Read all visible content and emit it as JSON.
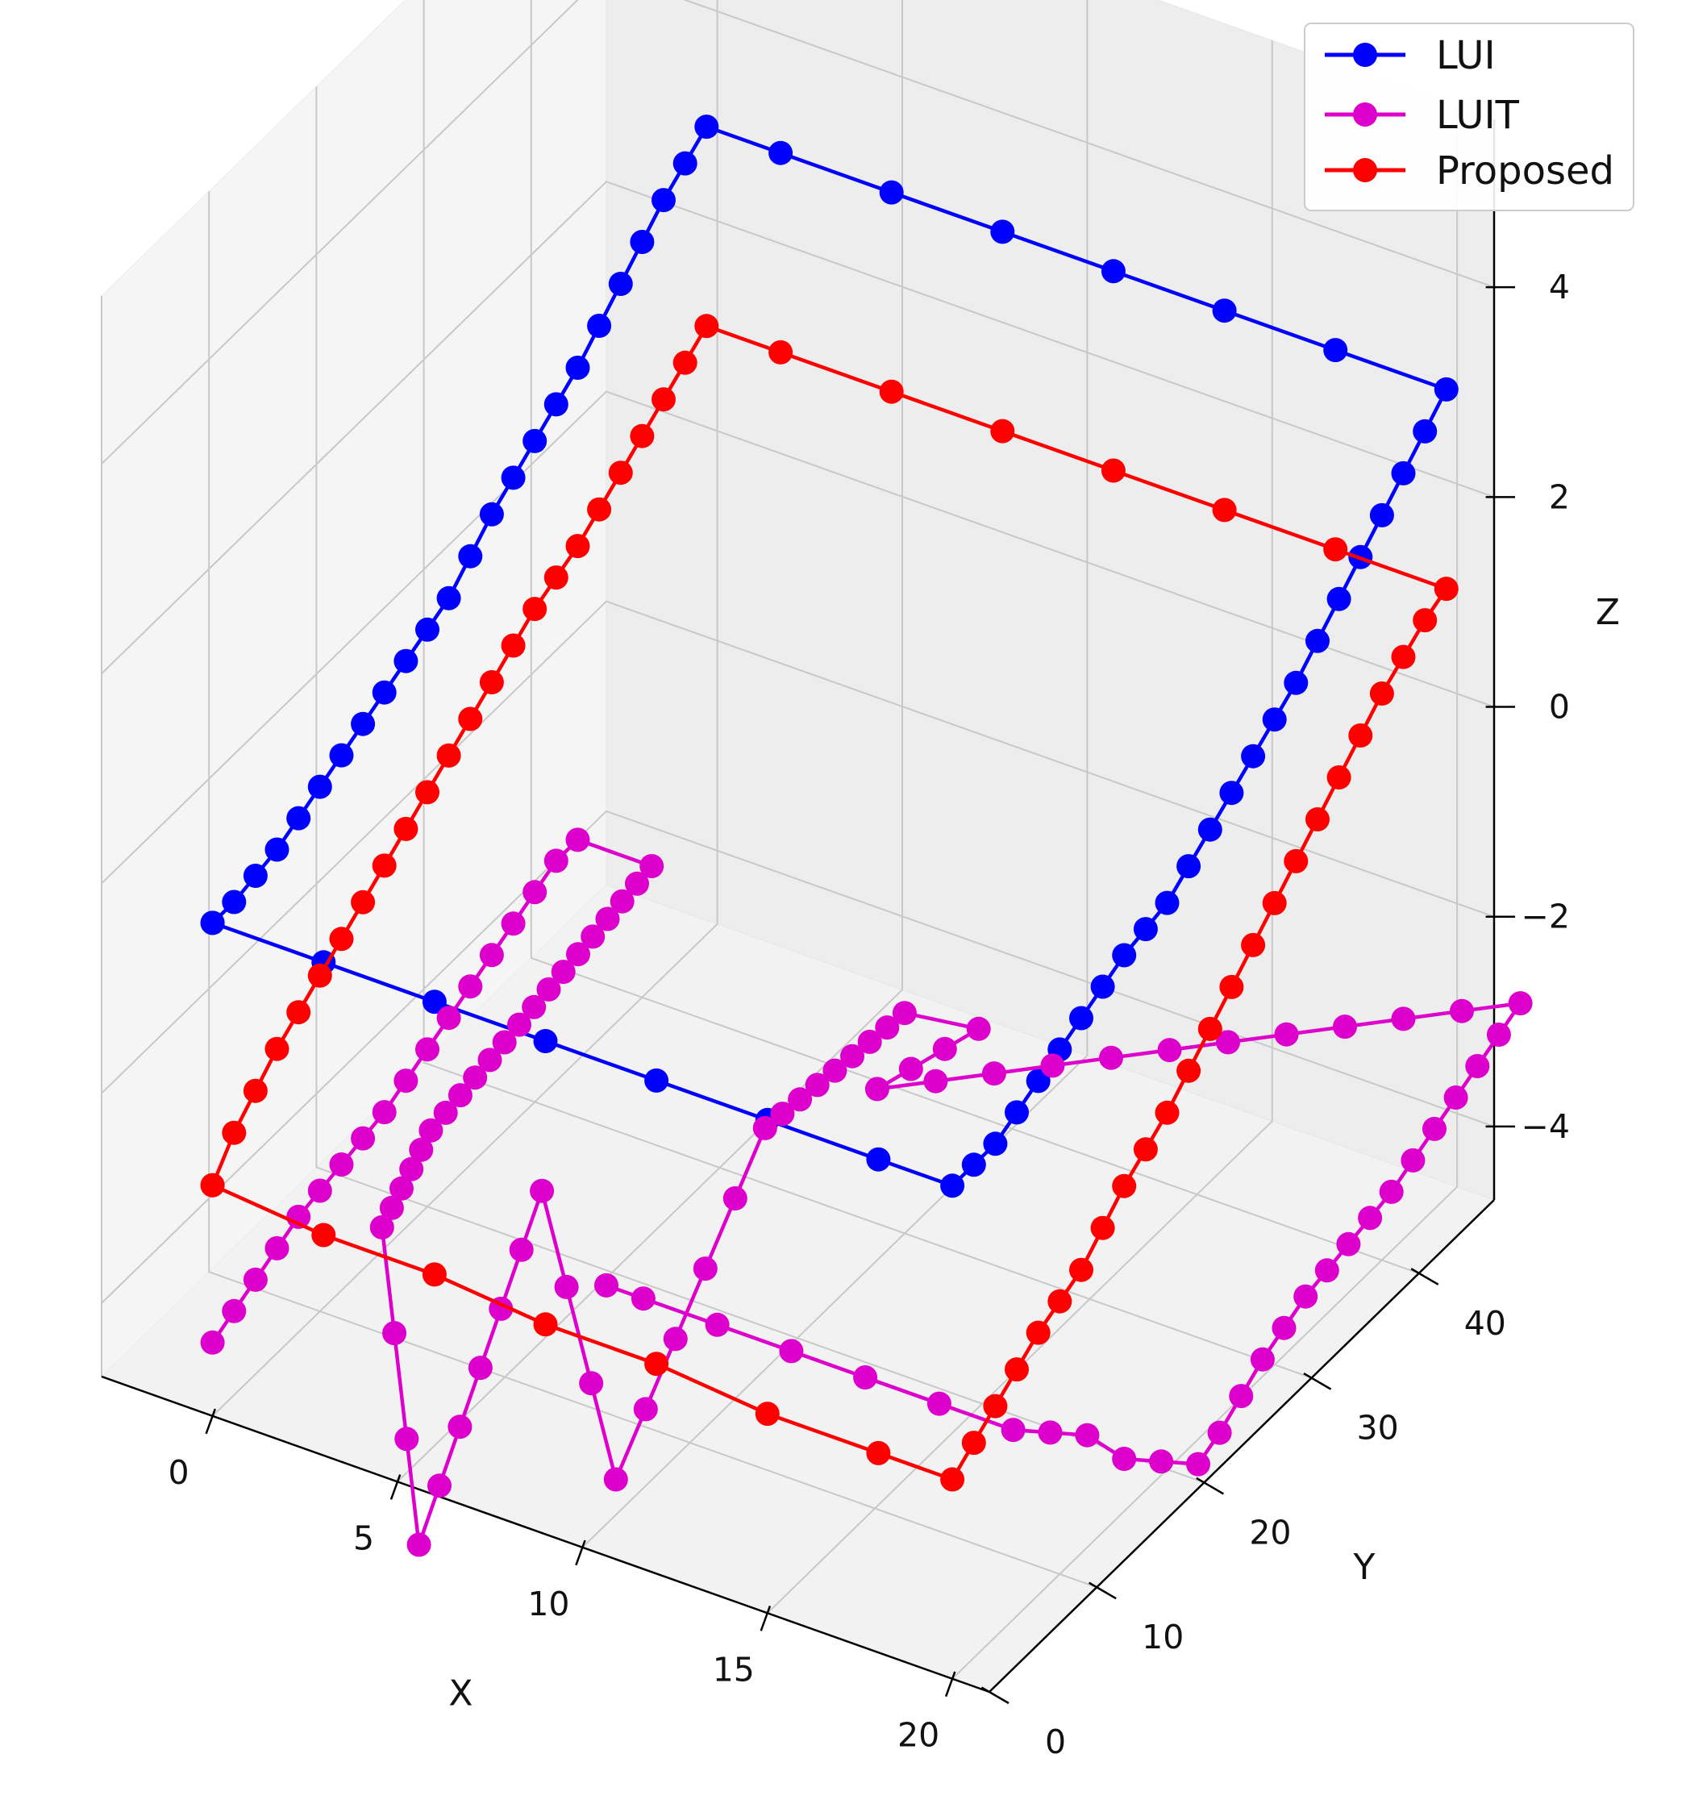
{
  "chart_data": {
    "type": "line",
    "subtype": "3d-scatter-line",
    "title": "",
    "xlabel": "X",
    "ylabel": "Y",
    "zlabel": "Z",
    "xlim": [
      -3,
      21
    ],
    "ylim": [
      0,
      47
    ],
    "zlim": [
      -4.7,
      5.6
    ],
    "x_ticks": [
      0,
      5,
      10,
      15,
      20
    ],
    "y_ticks": [
      0,
      10,
      20,
      30,
      40
    ],
    "z_ticks": [
      -4,
      -2,
      0,
      2,
      4
    ],
    "x_tick_labels": [
      "0",
      "5",
      "10",
      "15",
      "20"
    ],
    "y_tick_labels": [
      "0",
      "10",
      "20",
      "30",
      "40"
    ],
    "z_tick_labels": [
      "−4",
      "−2",
      "0",
      "2",
      "4"
    ],
    "grid": true,
    "legend_position": "top-right",
    "series": [
      {
        "name": "LUI",
        "color": "#0000ff",
        "points": [
          [
            0,
            0,
            0
          ],
          [
            3,
            0,
            0
          ],
          [
            6,
            0,
            0
          ],
          [
            9,
            0,
            0
          ],
          [
            12,
            0,
            0
          ],
          [
            15,
            0,
            0
          ],
          [
            18,
            0,
            0
          ],
          [
            20,
            0,
            0
          ],
          [
            20,
            4,
            0
          ],
          [
            20,
            8,
            0.2
          ],
          [
            20,
            12,
            0.4
          ],
          [
            20,
            16,
            0.6
          ],
          [
            20,
            20,
            0.7
          ],
          [
            20,
            24,
            1.0
          ],
          [
            20,
            28,
            1.3
          ],
          [
            20,
            32,
            1.6
          ],
          [
            20,
            36,
            2.0
          ],
          [
            20,
            40,
            2.4
          ],
          [
            20,
            44,
            2.8
          ],
          [
            20,
            46,
            3.0
          ],
          [
            17,
            46,
            3.0
          ],
          [
            14,
            46,
            3.0
          ],
          [
            11,
            46,
            3.0
          ],
          [
            8,
            46,
            3.0
          ],
          [
            5,
            46,
            3.0
          ],
          [
            2,
            46,
            3.0
          ],
          [
            0,
            46,
            3.0
          ],
          [
            0,
            42,
            2.7
          ],
          [
            0,
            38,
            2.3
          ],
          [
            0,
            34,
            1.9
          ],
          [
            0,
            30,
            1.6
          ],
          [
            0,
            26,
            1.3
          ],
          [
            0,
            22,
            0.9
          ],
          [
            0,
            18,
            0.7
          ],
          [
            0,
            14,
            0.5
          ],
          [
            0,
            10,
            0.3
          ],
          [
            0,
            6,
            0.1
          ],
          [
            0,
            2,
            0
          ],
          [
            0,
            0,
            0
          ]
        ]
      },
      {
        "name": "LUIT",
        "color": "#dd00cc",
        "points": [
          [
            0,
            0,
            -4.0
          ],
          [
            0,
            4,
            -3.8
          ],
          [
            0,
            8,
            -3.6
          ],
          [
            0,
            12,
            -3.5
          ],
          [
            0,
            16,
            -3.4
          ],
          [
            0,
            20,
            -3.2
          ],
          [
            0,
            24,
            -3.0
          ],
          [
            0,
            28,
            -2.8
          ],
          [
            0,
            32,
            -2.6
          ],
          [
            0,
            34,
            -2.6
          ],
          [
            2,
            34,
            -2.6
          ],
          [
            3,
            10,
            -2.6
          ],
          [
            4,
            2,
            -2.6
          ],
          [
            5,
            2,
            -5.5
          ],
          [
            6,
            10,
            -2.8
          ],
          [
            8,
            10,
            -5.3
          ],
          [
            10,
            17,
            -2.4
          ],
          [
            10,
            30,
            -2.6
          ],
          [
            12,
            30,
            -2.5
          ],
          [
            11,
            24,
            -2.6
          ],
          [
            13,
            28,
            -2.6
          ],
          [
            14,
            30,
            -2.6
          ],
          [
            15,
            32,
            -2.6
          ],
          [
            17,
            36,
            -2.6
          ],
          [
            19,
            40,
            -2.6
          ],
          [
            21,
            44,
            -2.6
          ],
          [
            22,
            46,
            -2.6
          ],
          [
            22,
            42,
            -2.8
          ],
          [
            22,
            38,
            -3.0
          ],
          [
            22,
            34,
            -3.2
          ],
          [
            22,
            30,
            -3.3
          ],
          [
            22,
            26,
            -3.4
          ],
          [
            22,
            22,
            -3.6
          ],
          [
            22,
            18,
            -3.9
          ],
          [
            22,
            16,
            -4.0
          ],
          [
            21,
            16,
            -4.1
          ],
          [
            20,
            16,
            -4.2
          ],
          [
            19,
            16,
            -4.1
          ],
          [
            18,
            16,
            -4.2
          ],
          [
            17,
            16,
            -4.3
          ],
          [
            15,
            16,
            -4.3
          ],
          [
            13,
            16,
            -4.3
          ],
          [
            11,
            16,
            -4.3
          ],
          [
            9,
            16,
            -4.3
          ],
          [
            7,
            16,
            -4.3
          ],
          [
            6,
            16,
            -4.3
          ]
        ]
      },
      {
        "name": "Proposed",
        "color": "#ff0000",
        "points": [
          [
            0,
            0,
            -2.5
          ],
          [
            3,
            0,
            -2.6
          ],
          [
            6,
            0,
            -2.6
          ],
          [
            9,
            0,
            -2.7
          ],
          [
            12,
            0,
            -2.7
          ],
          [
            15,
            0,
            -2.8
          ],
          [
            18,
            0,
            -2.8
          ],
          [
            20,
            0,
            -2.8
          ],
          [
            20,
            4,
            -2.5
          ],
          [
            20,
            8,
            -2.2
          ],
          [
            20,
            12,
            -2.0
          ],
          [
            20,
            16,
            -1.6
          ],
          [
            20,
            20,
            -1.3
          ],
          [
            20,
            24,
            -0.9
          ],
          [
            20,
            28,
            -0.5
          ],
          [
            20,
            32,
            -0.1
          ],
          [
            20,
            36,
            0.3
          ],
          [
            20,
            40,
            0.7
          ],
          [
            20,
            44,
            1.0
          ],
          [
            20,
            46,
            1.1
          ],
          [
            17,
            46,
            1.1
          ],
          [
            14,
            46,
            1.1
          ],
          [
            11,
            46,
            1.1
          ],
          [
            8,
            46,
            1.1
          ],
          [
            5,
            46,
            1.1
          ],
          [
            2,
            46,
            1.1
          ],
          [
            0,
            46,
            1.1
          ],
          [
            0,
            42,
            0.8
          ],
          [
            0,
            38,
            0.5
          ],
          [
            0,
            34,
            0.2
          ],
          [
            0,
            30,
            0.0
          ],
          [
            0,
            26,
            -0.3
          ],
          [
            0,
            22,
            -0.6
          ],
          [
            0,
            18,
            -0.9
          ],
          [
            0,
            14,
            -1.2
          ],
          [
            0,
            10,
            -1.5
          ],
          [
            0,
            6,
            -1.8
          ],
          [
            0,
            2,
            -2.2
          ],
          [
            0,
            0,
            -2.5
          ]
        ]
      }
    ]
  }
}
